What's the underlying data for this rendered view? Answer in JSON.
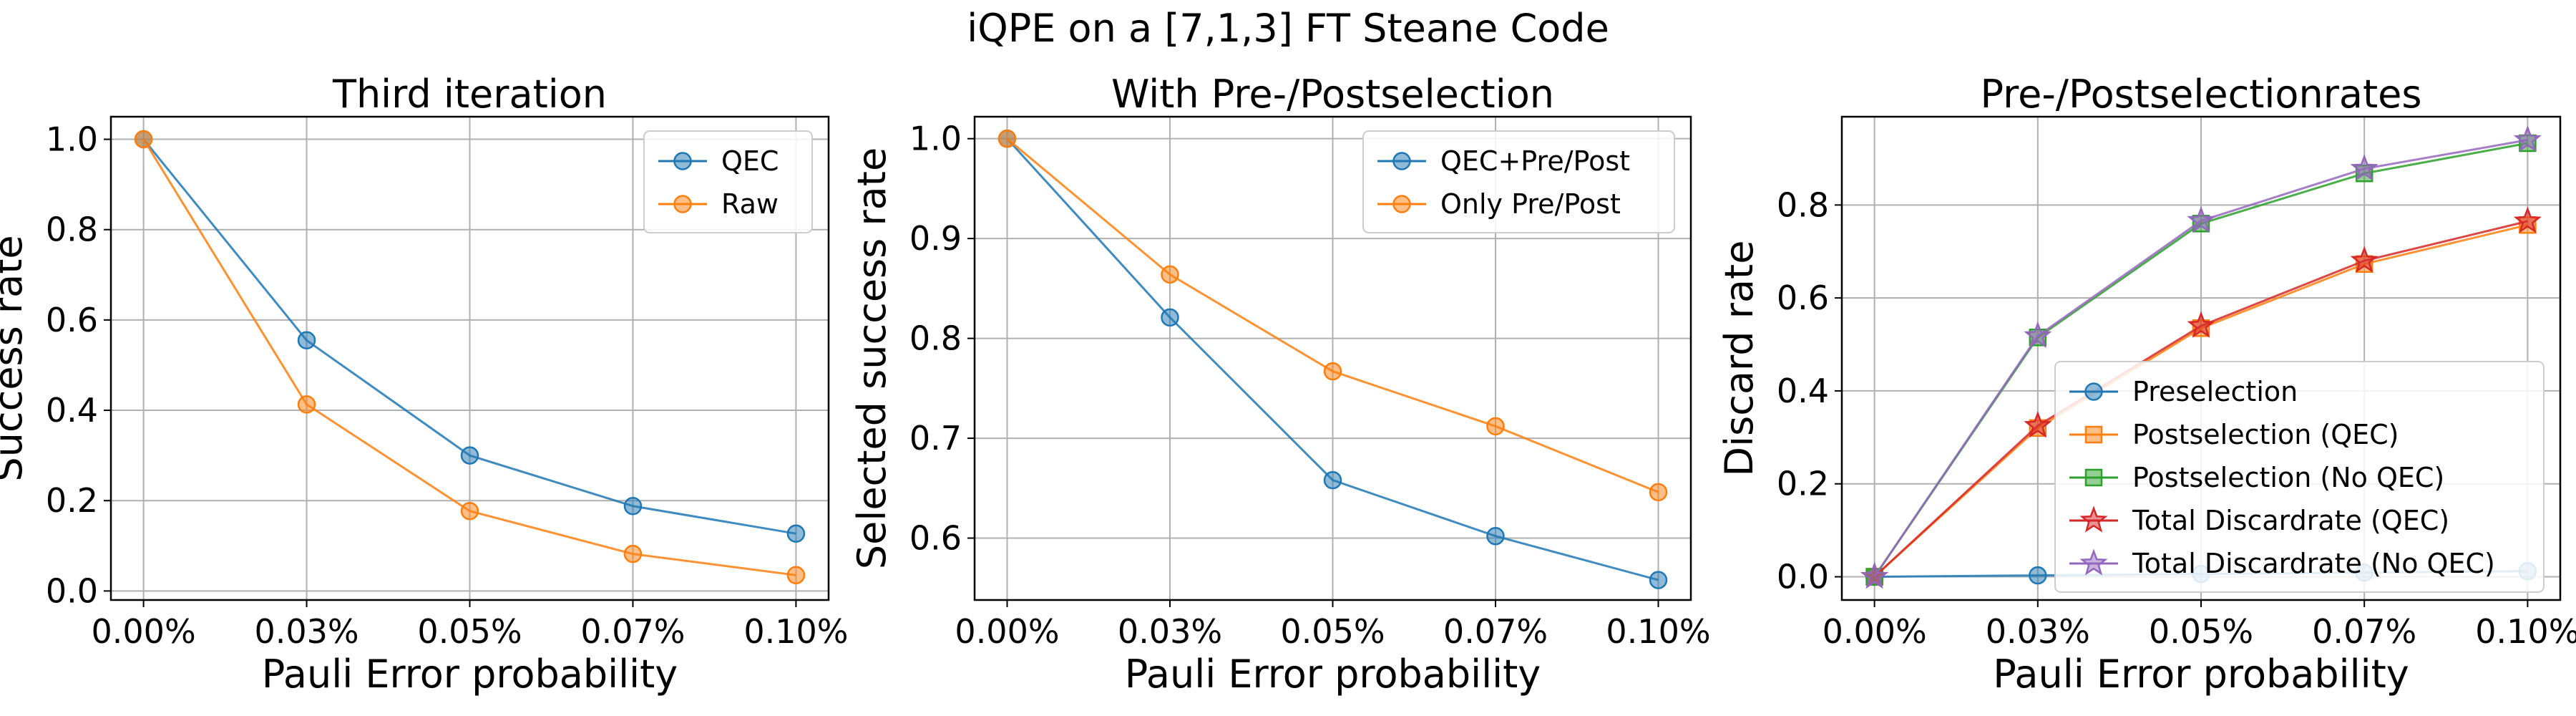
{
  "figure": {
    "suptitle": "iQPE on a [7,1,3] FT Steane Code",
    "colors": {
      "blue": "#1f77b4",
      "orange": "#ff7f0e",
      "green": "#2ca02c",
      "red": "#d62728",
      "purple": "#9467bd",
      "grid": "#b0b0b0"
    }
  },
  "chart_data": [
    {
      "type": "line",
      "title": "Third iteration",
      "xlabel": "Pauli Error probability",
      "ylabel": "Success rate",
      "categories": [
        "0.00%",
        "0.03%",
        "0.05%",
        "0.07%",
        "0.10%"
      ],
      "x": [
        0.0,
        0.025,
        0.05,
        0.075,
        0.1
      ],
      "ylim": [
        -0.02,
        1.05
      ],
      "yticks": [
        0.0,
        0.2,
        0.4,
        0.6,
        0.8,
        1.0
      ],
      "ytick_labels": [
        "0.0",
        "0.2",
        "0.4",
        "0.6",
        "0.8",
        "1.0"
      ],
      "grid": true,
      "legend_position": "top-right",
      "series": [
        {
          "name": "QEC",
          "color": "#1f77b4",
          "marker": "circle",
          "values": [
            1.0,
            0.555,
            0.3,
            0.188,
            0.127
          ]
        },
        {
          "name": "Raw",
          "color": "#ff7f0e",
          "marker": "circle",
          "values": [
            1.0,
            0.413,
            0.177,
            0.082,
            0.035
          ]
        }
      ]
    },
    {
      "type": "line",
      "title": "With Pre-/Postselection",
      "xlabel": "Pauli Error probability",
      "ylabel": "Selected success rate",
      "categories": [
        "0.00%",
        "0.03%",
        "0.05%",
        "0.07%",
        "0.10%"
      ],
      "x": [
        0.0,
        0.025,
        0.05,
        0.075,
        0.1
      ],
      "ylim": [
        0.538,
        1.022
      ],
      "yticks": [
        0.6,
        0.7,
        0.8,
        0.9,
        1.0
      ],
      "ytick_labels": [
        "0.6",
        "0.7",
        "0.8",
        "0.9",
        "1.0"
      ],
      "grid": true,
      "legend_position": "top-right",
      "series": [
        {
          "name": "QEC+Pre/Post",
          "color": "#1f77b4",
          "marker": "circle",
          "values": [
            1.0,
            0.821,
            0.658,
            0.602,
            0.558
          ]
        },
        {
          "name": "Only Pre/Post",
          "color": "#ff7f0e",
          "marker": "circle",
          "values": [
            1.0,
            0.864,
            0.767,
            0.712,
            0.646
          ]
        }
      ]
    },
    {
      "type": "line",
      "title": "Pre-/Postselectionrates",
      "xlabel": "Pauli Error probability",
      "ylabel": "Discard rate",
      "categories": [
        "0.00%",
        "0.03%",
        "0.05%",
        "0.07%",
        "0.10%"
      ],
      "x": [
        0.0,
        0.025,
        0.05,
        0.075,
        0.1
      ],
      "ylim": [
        -0.05,
        0.99
      ],
      "yticks": [
        0.0,
        0.2,
        0.4,
        0.6,
        0.8
      ],
      "ytick_labels": [
        "0.0",
        "0.2",
        "0.4",
        "0.6",
        "0.8"
      ],
      "grid": true,
      "legend_position": "bottom-right",
      "series": [
        {
          "name": "Preselection",
          "color": "#1f77b4",
          "marker": "circle",
          "values": [
            0.0,
            0.003,
            0.006,
            0.009,
            0.012
          ]
        },
        {
          "name": "Postselection (QEC)",
          "color": "#ff7f0e",
          "marker": "square",
          "values": [
            0.0,
            0.32,
            0.535,
            0.673,
            0.757
          ]
        },
        {
          "name": "Postselection (No QEC)",
          "color": "#2ca02c",
          "marker": "square",
          "values": [
            0.0,
            0.515,
            0.76,
            0.868,
            0.933
          ]
        },
        {
          "name": "Total Discardrate (QEC)",
          "color": "#d62728",
          "marker": "star",
          "values": [
            0.0,
            0.325,
            0.54,
            0.68,
            0.765
          ]
        },
        {
          "name": "Total Discardrate (No QEC)",
          "color": "#9467bd",
          "marker": "star",
          "values": [
            0.0,
            0.518,
            0.766,
            0.878,
            0.94
          ]
        }
      ]
    }
  ]
}
